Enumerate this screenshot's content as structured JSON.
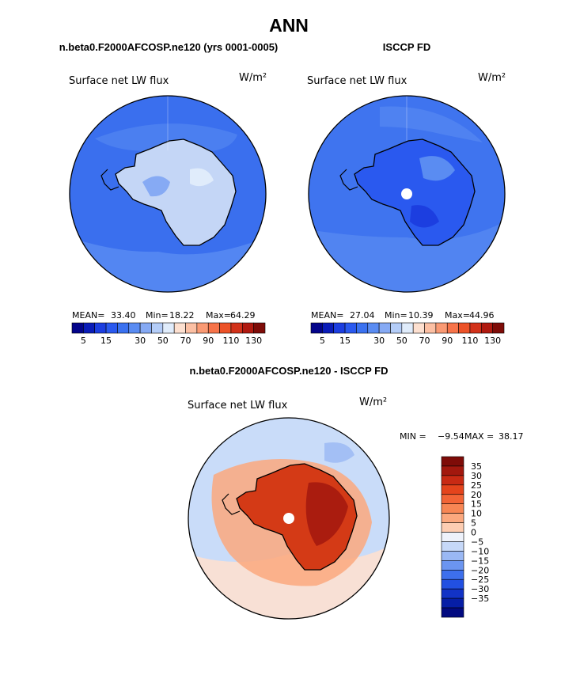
{
  "figure_title": "ANN",
  "chart_data": [
    {
      "type": "map",
      "projection": "south-polar stereographic",
      "panel_title": "n.beta0.F2000AFCOSP.ne120 (yrs 0001-0005)",
      "field_label": "Surface net LW flux",
      "units": "W/m²",
      "stats": {
        "mean_label": "MEAN=",
        "mean": "33.40",
        "min_label": "Min=",
        "min": "18.22",
        "max_label": "Max=",
        "max": "64.29"
      },
      "colorbar": {
        "orientation": "horizontal",
        "levels": [
          5,
          10,
          15,
          20,
          25,
          30,
          40,
          50,
          60,
          70,
          80,
          90,
          100,
          110,
          120,
          130
        ],
        "tick_labels": [
          "5",
          "15",
          "30",
          "50",
          "70",
          "90",
          "110",
          "130"
        ]
      }
    },
    {
      "type": "map",
      "projection": "south-polar stereographic",
      "panel_title": "ISCCP FD",
      "field_label": "Surface net LW flux",
      "units": "W/m²",
      "stats": {
        "mean_label": "MEAN=",
        "mean": "27.04",
        "min_label": "Min=",
        "min": "10.39",
        "max_label": "Max=",
        "max": "44.96"
      },
      "colorbar": {
        "orientation": "horizontal",
        "levels": [
          5,
          10,
          15,
          20,
          25,
          30,
          40,
          50,
          60,
          70,
          80,
          90,
          100,
          110,
          120,
          130
        ],
        "tick_labels": [
          "5",
          "15",
          "30",
          "50",
          "70",
          "90",
          "110",
          "130"
        ]
      }
    },
    {
      "type": "map",
      "projection": "south-polar stereographic",
      "panel_title": "n.beta0.F2000AFCOSP.ne120 - ISCCP FD",
      "field_label": "Surface net LW flux",
      "units": "W/m²",
      "stats": {
        "min_label": "MIN =",
        "min": "−9.54",
        "max_label": "MAX =",
        "max": "38.17"
      },
      "colorbar": {
        "orientation": "vertical",
        "levels": [
          35,
          30,
          25,
          20,
          15,
          10,
          5,
          0,
          -5,
          -10,
          -15,
          -20,
          -25,
          -30,
          -35
        ],
        "tick_labels": [
          "35",
          "30",
          "25",
          "20",
          "15",
          "10",
          "5",
          "0",
          "−5",
          "−10",
          "−15",
          "−20",
          "−25",
          "−30",
          "−35"
        ]
      }
    }
  ],
  "colors": {
    "abs_palette": [
      "#03048a",
      "#0a1cb8",
      "#1c3ee0",
      "#2a59ef",
      "#3a71f0",
      "#5a8cf2",
      "#86aaf4",
      "#b4cdf8",
      "#e0ecfb",
      "#fde0d0",
      "#fcc0a4",
      "#fa9a74",
      "#f7744a",
      "#ec5228",
      "#d2321a",
      "#b01a10",
      "#7e0c08"
    ],
    "diff_palette": [
      "#7e0c08",
      "#a2180e",
      "#c82a14",
      "#e4441c",
      "#f26436",
      "#f78654",
      "#fba87e",
      "#fdcdb2",
      "#eef2fb",
      "#c6d8f8",
      "#9ab8f4",
      "#6b95f0",
      "#3d6fec",
      "#2250e2",
      "#1233c6",
      "#061ea6",
      "#020a80"
    ],
    "antarctica_model": "#c4d6f6",
    "antarctica_isccp": "#2a59ef",
    "ocean_model": "#3a6fee",
    "ocean_isccp": "#3f74ef",
    "diff_antarctica": "#d43a16",
    "diff_ocean": "#c9dcf9"
  }
}
